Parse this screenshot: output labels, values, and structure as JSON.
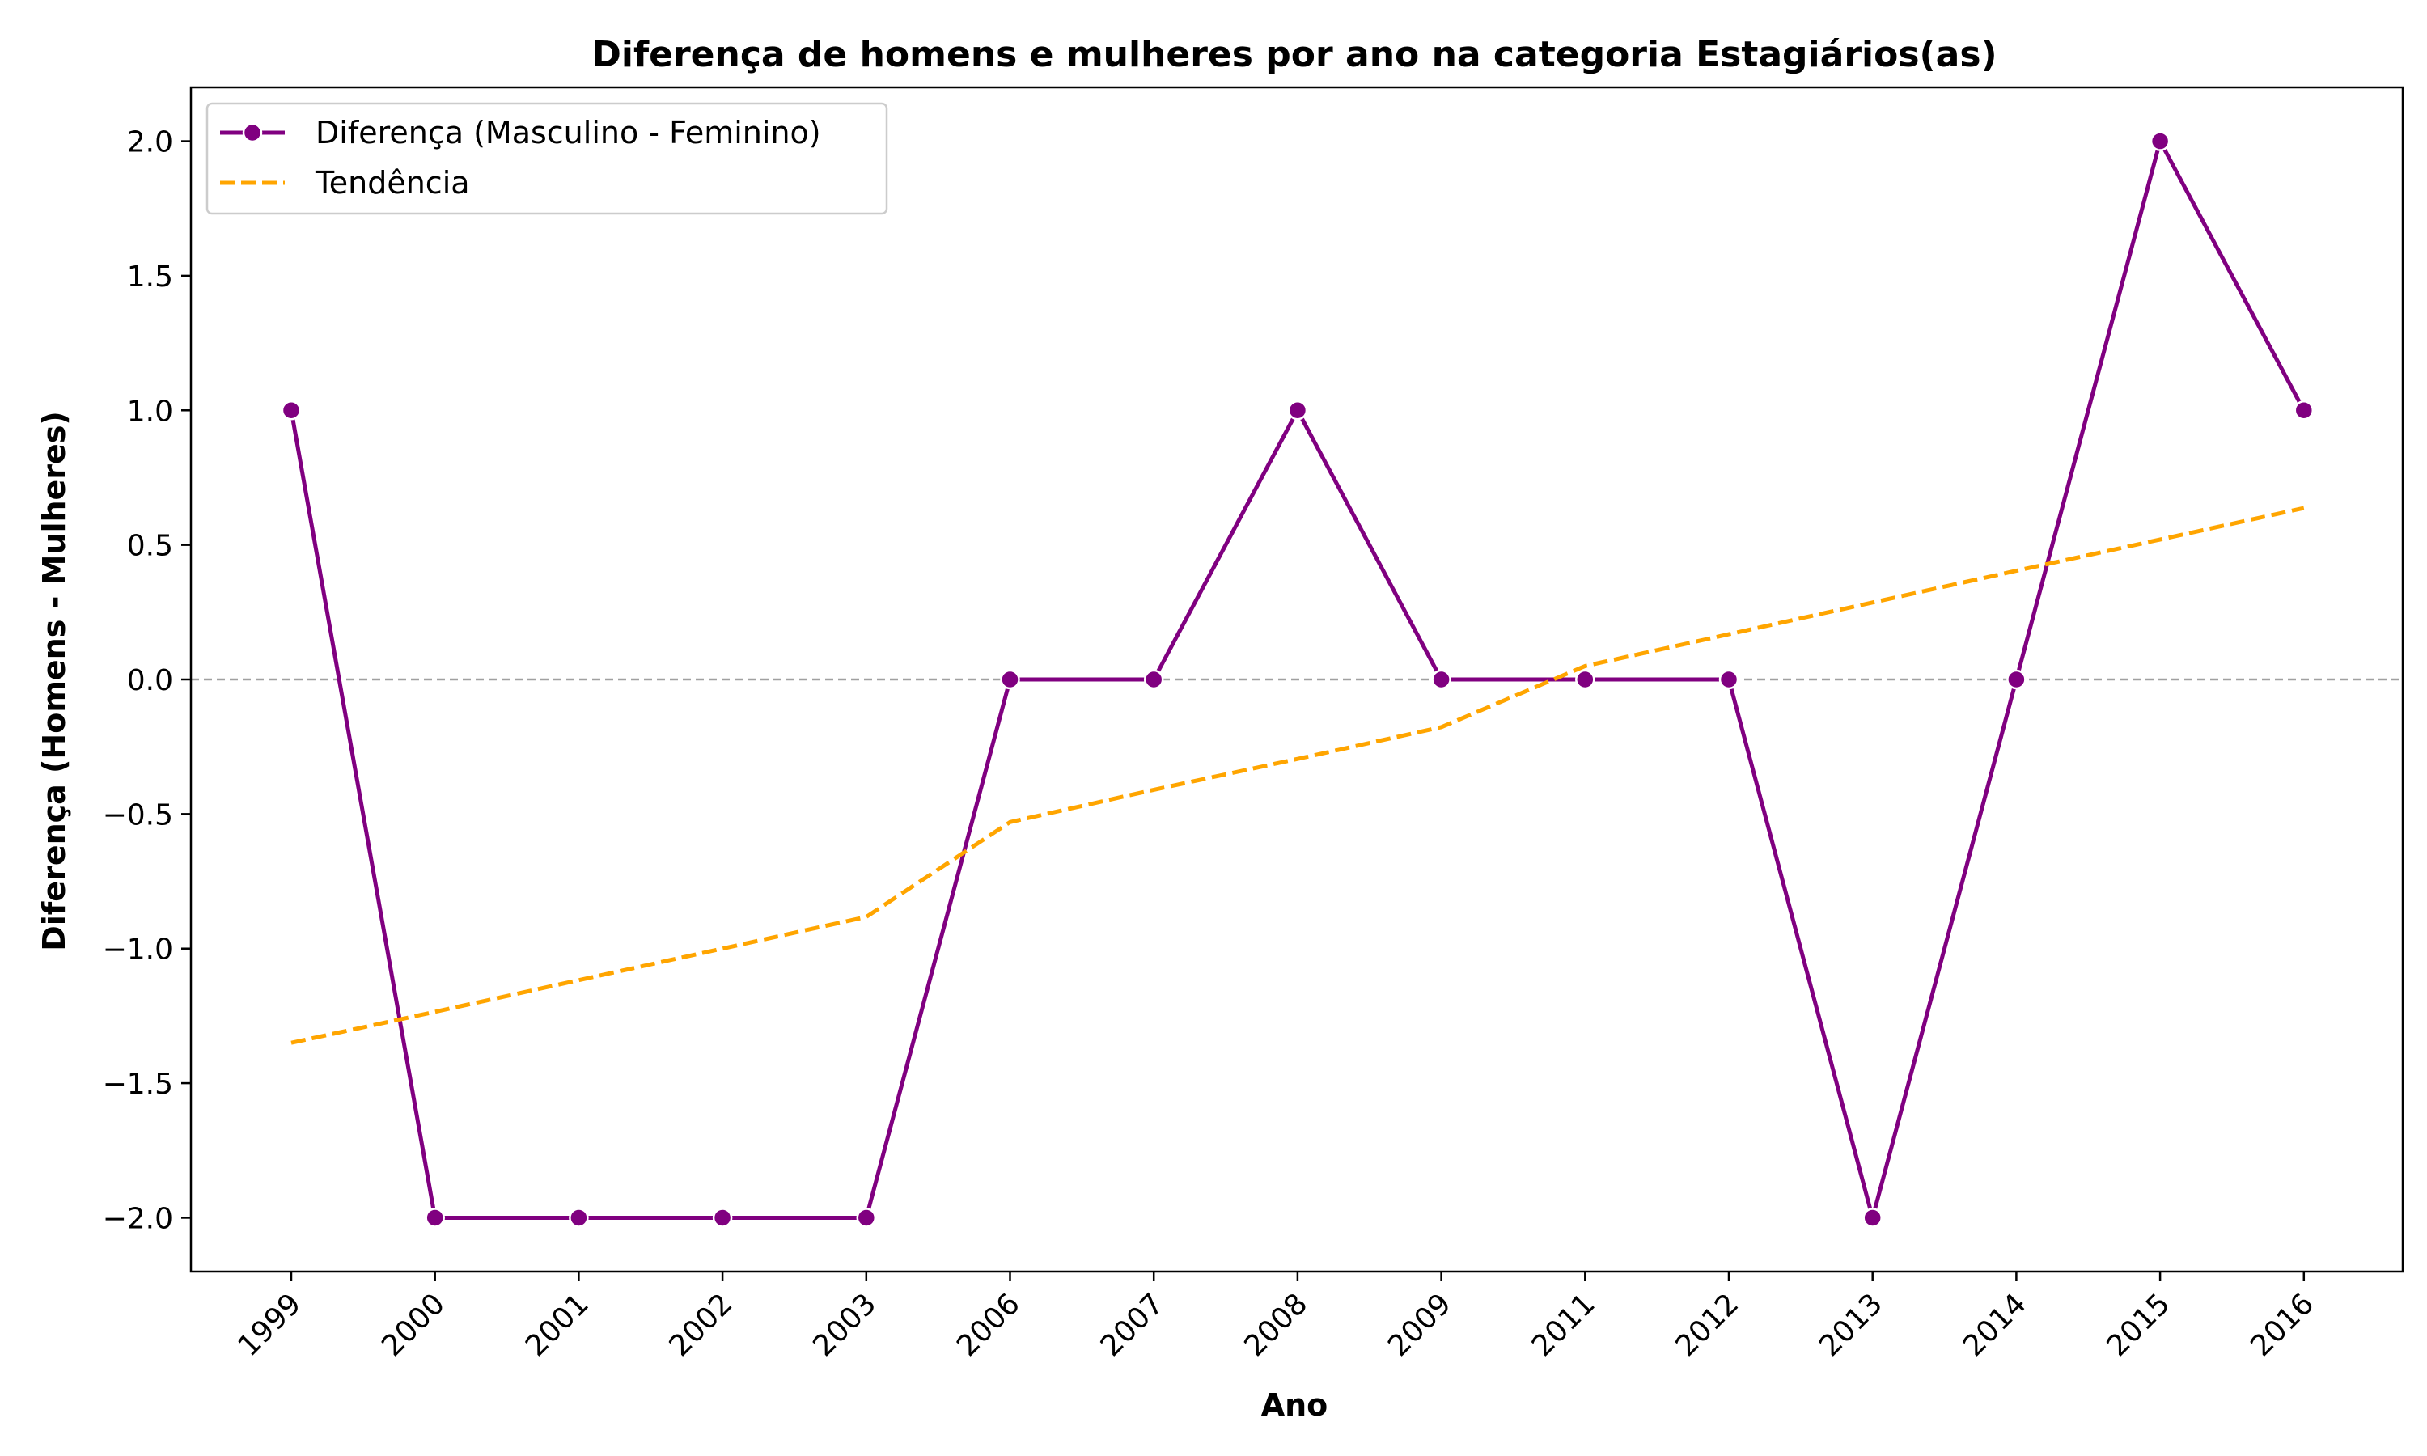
{
  "chart_data": {
    "type": "line",
    "title": "Diferença de homens e mulheres por ano na categoria Estagiários(as)",
    "xlabel": "Ano",
    "ylabel": "Diferença (Homens - Mulheres)",
    "categories": [
      "1999",
      "2000",
      "2001",
      "2002",
      "2003",
      "2006",
      "2007",
      "2008",
      "2009",
      "2011",
      "2012",
      "2013",
      "2014",
      "2015",
      "2016"
    ],
    "ylim": [
      -2.2,
      2.2
    ],
    "yticks": [
      2.0,
      1.5,
      1.0,
      0.5,
      0.0,
      -0.5,
      -1.0,
      -1.5,
      -2.0
    ],
    "ytick_labels": [
      "2.0",
      "1.5",
      "1.0",
      "0.5",
      "0.0",
      "−0.5",
      "−1.0",
      "−1.5",
      "−2.0"
    ],
    "grid": false,
    "legend_position": "top-left",
    "reference_line_y": 0,
    "series": [
      {
        "name": "Diferença (Masculino - Feminino)",
        "style": "solid-line-with-markers",
        "color": "#800080",
        "values": [
          1,
          -2,
          -2,
          -2,
          -2,
          0,
          0,
          1,
          0,
          0,
          0,
          -2,
          0,
          2,
          1
        ]
      },
      {
        "name": "Tendência",
        "style": "dashed-line",
        "color": "#FFA500",
        "values": [
          -1.35,
          -1.235,
          -1.117,
          -1.0,
          -0.882,
          -0.53,
          -0.41,
          -0.295,
          -0.177,
          0.05,
          0.168,
          0.286,
          0.404,
          0.52,
          0.637
        ]
      }
    ]
  }
}
